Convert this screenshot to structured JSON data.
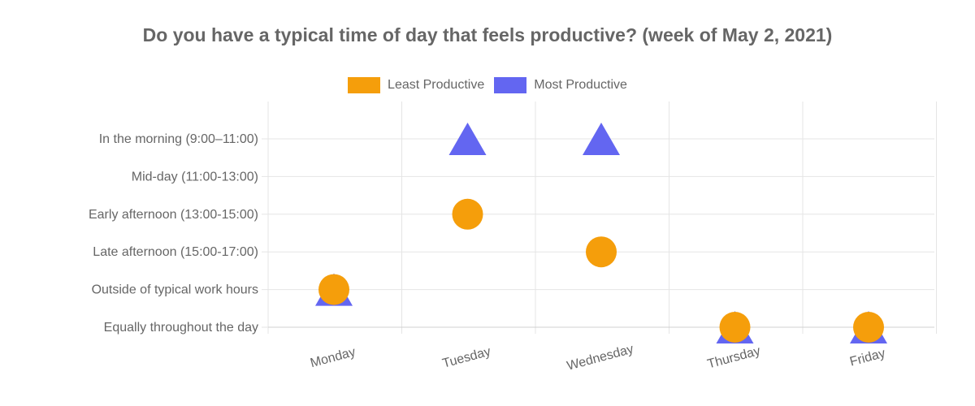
{
  "chart_data": {
    "type": "scatter",
    "title": "Do you have a typical time of day that feels productive? (week of May 2, 2021)",
    "legend_position": "top",
    "grid": true,
    "x_categories": [
      "Monday",
      "Tuesday",
      "Wednesday",
      "Thursday",
      "Friday"
    ],
    "y_categories": [
      "In the morning (9:00–11:00)",
      "Mid-day (11:00-13:00)",
      "Early afternoon (13:00-15:00)",
      "Late afternoon (15:00-17:00)",
      "Outside of typical work hours",
      "Equally throughout the day"
    ],
    "series": [
      {
        "name": "Least Productive",
        "color": "#f59e0b",
        "marker": "circle",
        "points": [
          {
            "x": "Monday",
            "y": "Outside of typical work hours"
          },
          {
            "x": "Tuesday",
            "y": "Early afternoon (13:00-15:00)"
          },
          {
            "x": "Wednesday",
            "y": "Late afternoon (15:00-17:00)"
          },
          {
            "x": "Thursday",
            "y": "Equally throughout the day"
          },
          {
            "x": "Friday",
            "y": "Equally throughout the day"
          }
        ]
      },
      {
        "name": "Most Productive",
        "color": "#6366f1",
        "marker": "triangle",
        "points": [
          {
            "x": "Monday",
            "y": "Outside of typical work hours"
          },
          {
            "x": "Tuesday",
            "y": "In the morning (9:00–11:00)"
          },
          {
            "x": "Wednesday",
            "y": "In the morning (9:00–11:00)"
          },
          {
            "x": "Thursday",
            "y": "Equally throughout the day"
          },
          {
            "x": "Friday",
            "y": "Equally throughout the day"
          }
        ]
      }
    ]
  }
}
